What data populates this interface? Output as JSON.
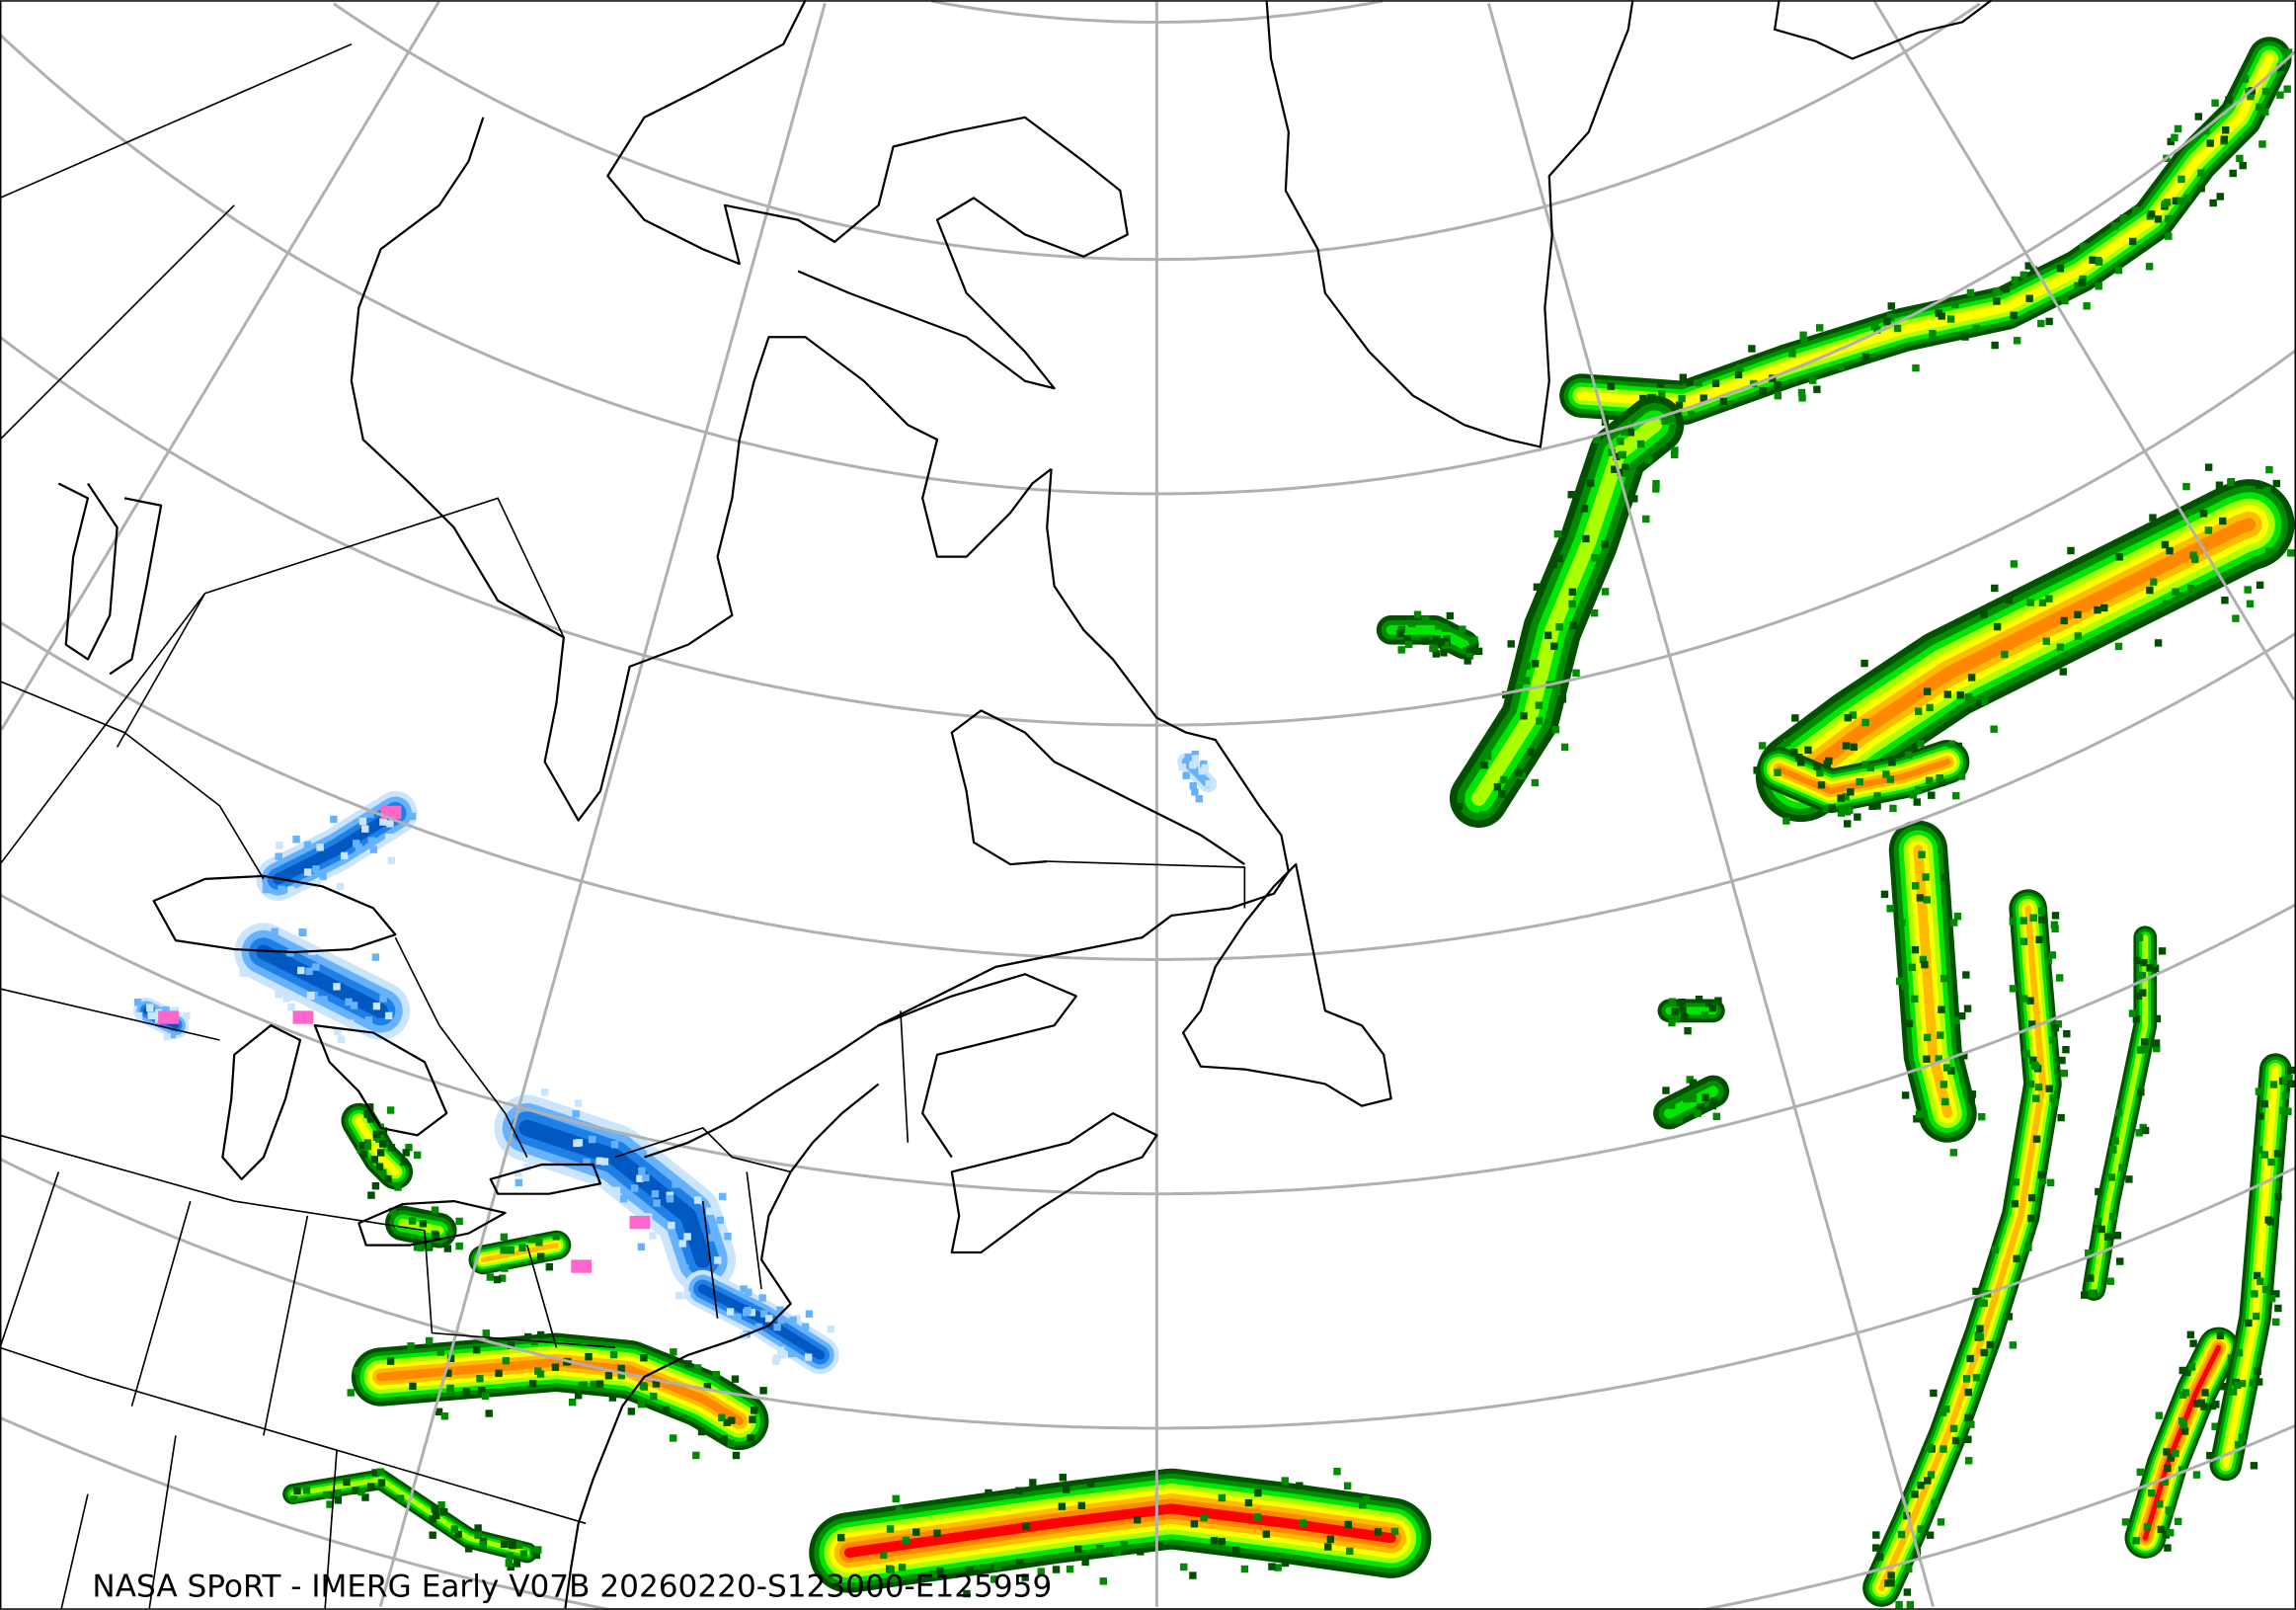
{
  "caption": "NASA SPoRT - IMERG Early V07B 20260220-S123000-E125959",
  "colors": {
    "graticule": "#b0b0b0",
    "coastline": "#000000",
    "rain_scale": [
      "#005000",
      "#008c00",
      "#00e600",
      "#aaff00",
      "#ffff00",
      "#ffbb00",
      "#ff8800",
      "#ff0000"
    ],
    "snow_scale": [
      "#cce5ff",
      "#66b2ff",
      "#1e7fe6",
      "#0058c0"
    ],
    "mixed_scale": [
      "#ff66cc",
      "#ff3fa0"
    ]
  }
}
